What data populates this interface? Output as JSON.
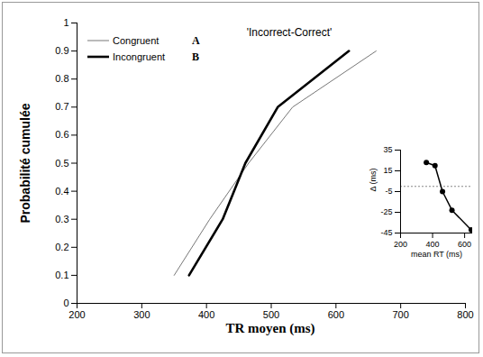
{
  "chart_data": [
    {
      "type": "line",
      "title": "'Incorrect-Correct'",
      "x_label": "TR moyen (ms)",
      "y_label": "Probabilité cumulée",
      "series": [
        {
          "name": "Congruent",
          "color": "#777777",
          "x": [
            350,
            405,
            465,
            533,
            662
          ],
          "values": [
            0.1,
            0.3,
            0.5,
            0.7,
            0.9
          ]
        },
        {
          "name": "Incongruent",
          "color": "#000000",
          "x": [
            373,
            425,
            460,
            510,
            620
          ],
          "values": [
            0.1,
            0.3,
            0.5,
            0.7,
            0.9
          ]
        }
      ],
      "annotations": [
        "A",
        "B"
      ],
      "legend": "upper left",
      "xlim": [
        200,
        800
      ],
      "xticks": [
        200,
        300,
        400,
        500,
        600,
        700,
        800
      ],
      "ylim": [
        0,
        1
      ],
      "yticks": [
        0,
        0.1,
        0.2,
        0.3,
        0.4,
        0.5,
        0.6,
        0.7,
        0.8,
        0.9,
        1
      ]
    },
    {
      "type": "line",
      "marker": "circle",
      "color": "#000000",
      "x_label": "mean RT (ms)",
      "y_label": "Δ (ms)",
      "x": [
        361,
        415,
        462,
        521,
        641
      ],
      "values": [
        23,
        20,
        -5,
        -23,
        -42
      ],
      "baseline": 0,
      "xlim": [
        200,
        650
      ],
      "xticks": [
        200,
        400,
        600
      ],
      "ylim": [
        -45,
        35
      ],
      "yticks": [
        -45,
        -25,
        -5,
        15,
        35
      ]
    }
  ]
}
